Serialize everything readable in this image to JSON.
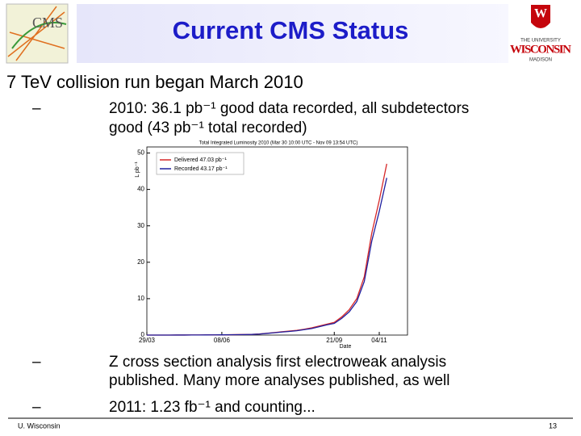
{
  "header": {
    "title": "Current CMS Status",
    "logo_left": "CMS",
    "logo_right": [
      "THE UNIVERSITY",
      "WISCONSIN",
      "MADISON"
    ]
  },
  "main_bullet": "7 TeV collision run began March 2010",
  "bullets": [
    {
      "marker": "–",
      "lines": [
        "2010: 36.1 pb⁻¹ good data recorded, all subdetectors",
        "good (43 pb⁻¹ total recorded)"
      ]
    },
    {
      "marker": "–",
      "lines": [
        "Z cross section analysis first electroweak analysis",
        "published. Many more analyses published, as well"
      ]
    },
    {
      "marker": "–",
      "lines": [
        "2011: 1.23 fb⁻¹ and counting..."
      ]
    }
  ],
  "footer": {
    "left": "U. Wisconsin",
    "page": "13"
  },
  "chart_data": {
    "type": "line",
    "title": "Total Integrated Luminosity 2010 (Mar 30 10:00 UTC - Nov 09 13:54 UTC)",
    "x_label": "Date",
    "y_label": "L pb⁻¹",
    "categories": [
      "29/03",
      null,
      null,
      null,
      null,
      null,
      null,
      null,
      null,
      null,
      "08/06",
      null,
      null,
      null,
      null,
      null,
      null,
      null,
      null,
      null,
      null,
      null,
      null,
      null,
      null,
      "21/09",
      null,
      null,
      null,
      null,
      null,
      "04/11",
      null
    ],
    "series": [
      {
        "name": "Delivered 47.03 pb⁻¹",
        "color": "#d62728",
        "values": [
          0,
          0,
          0,
          0,
          0.01,
          0.01,
          0.02,
          0.03,
          0.04,
          0.06,
          0.08,
          0.1,
          0.12,
          0.15,
          0.2,
          0.3,
          0.5,
          0.7,
          0.9,
          1.1,
          1.3,
          1.6,
          2.0,
          2.5,
          3.0,
          3.5,
          5,
          7,
          10,
          16,
          28,
          37,
          47.03
        ]
      },
      {
        "name": "Recorded 43.17 pb⁻¹",
        "color": "#1f1f9f",
        "values": [
          0,
          0,
          0,
          0,
          0.01,
          0.01,
          0.02,
          0.03,
          0.04,
          0.05,
          0.07,
          0.09,
          0.11,
          0.14,
          0.18,
          0.27,
          0.46,
          0.64,
          0.83,
          1.0,
          1.2,
          1.5,
          1.8,
          2.3,
          2.8,
          3.2,
          4.6,
          6.4,
          9.2,
          14.7,
          25.8,
          34,
          43.17
        ]
      }
    ],
    "ylim": [
      0,
      51
    ],
    "yticks": [
      0,
      10,
      20,
      30,
      40,
      50
    ],
    "grid": false,
    "legend": "upper left"
  }
}
